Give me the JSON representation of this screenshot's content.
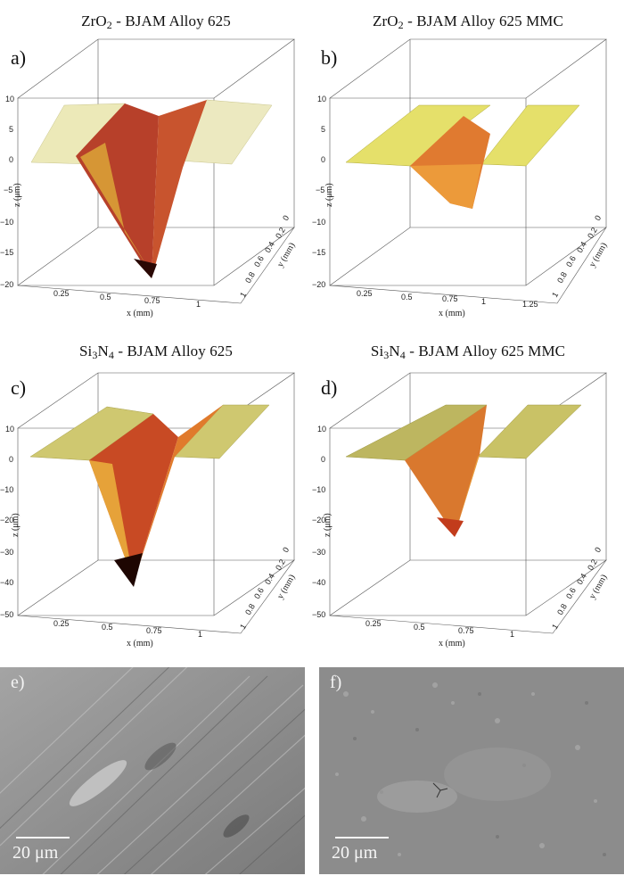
{
  "panels": [
    {
      "label": "a)",
      "material": "ZrO",
      "material_sub": "2",
      "suffix": " - BJAM Alloy 625",
      "z_ticks": [
        "10",
        "5",
        "0",
        "−5",
        "−10",
        "−15",
        "−20"
      ],
      "x_ticks": [
        "0.25",
        "0.5",
        "0.75",
        "1"
      ],
      "y_ticks": [
        "0",
        "0.2",
        "0.4",
        "0.6",
        "0.8",
        "1"
      ],
      "x_label": "x (mm)",
      "y_label": "y (mm)",
      "z_label": "z (μm)"
    },
    {
      "label": "b)",
      "material": "ZrO",
      "material_sub": "2",
      "suffix": " - BJAM Alloy 625 MMC",
      "z_ticks": [
        "10",
        "5",
        "0",
        "−5",
        "−10",
        "−15",
        "−20"
      ],
      "x_ticks": [
        "0.25",
        "0.5",
        "0.75",
        "1",
        "1.25"
      ],
      "y_ticks": [
        "0",
        "0.2",
        "0.4",
        "0.6",
        "0.8",
        "1"
      ],
      "x_label": "x (mm)",
      "y_label": "y (mm)",
      "z_label": "z (μm)"
    },
    {
      "label": "c)",
      "material": "Si",
      "material_sub": "3",
      "material2": "N",
      "material2_sub": "4",
      "suffix": " - BJAM Alloy 625",
      "z_ticks": [
        "10",
        "0",
        "−10",
        "−20",
        "−30",
        "−40",
        "−50"
      ],
      "x_ticks": [
        "0.25",
        "0.5",
        "0.75",
        "1"
      ],
      "y_ticks": [
        "0",
        "0.2",
        "0.4",
        "0.6",
        "0.8",
        "1"
      ],
      "x_label": "x (mm)",
      "y_label": "y (mm)",
      "z_label": "z (μm)"
    },
    {
      "label": "d)",
      "material": "Si",
      "material_sub": "3",
      "material2": "N",
      "material2_sub": "4",
      "suffix": " - BJAM Alloy 625 MMC",
      "z_ticks": [
        "10",
        "0",
        "−10",
        "−20",
        "−30",
        "−40",
        "−50"
      ],
      "x_ticks": [
        "0.25",
        "0.5",
        "0.75",
        "1"
      ],
      "y_ticks": [
        "0",
        "0.2",
        "0.4",
        "0.6",
        "0.8",
        "1"
      ],
      "x_label": "x (mm)",
      "y_label": "y (mm)",
      "z_label": "z (μm)"
    }
  ],
  "sem": [
    {
      "label": "e)",
      "scale": "20 μm"
    },
    {
      "label": "f)",
      "scale": "20 μm"
    }
  ],
  "colors": {
    "surface_top": "#e8e46a",
    "groove_mid": "#d9642a",
    "groove_deep": "#3a0a04",
    "frost": "#f2f2ea",
    "sem_gray": "#8e8e8e"
  }
}
